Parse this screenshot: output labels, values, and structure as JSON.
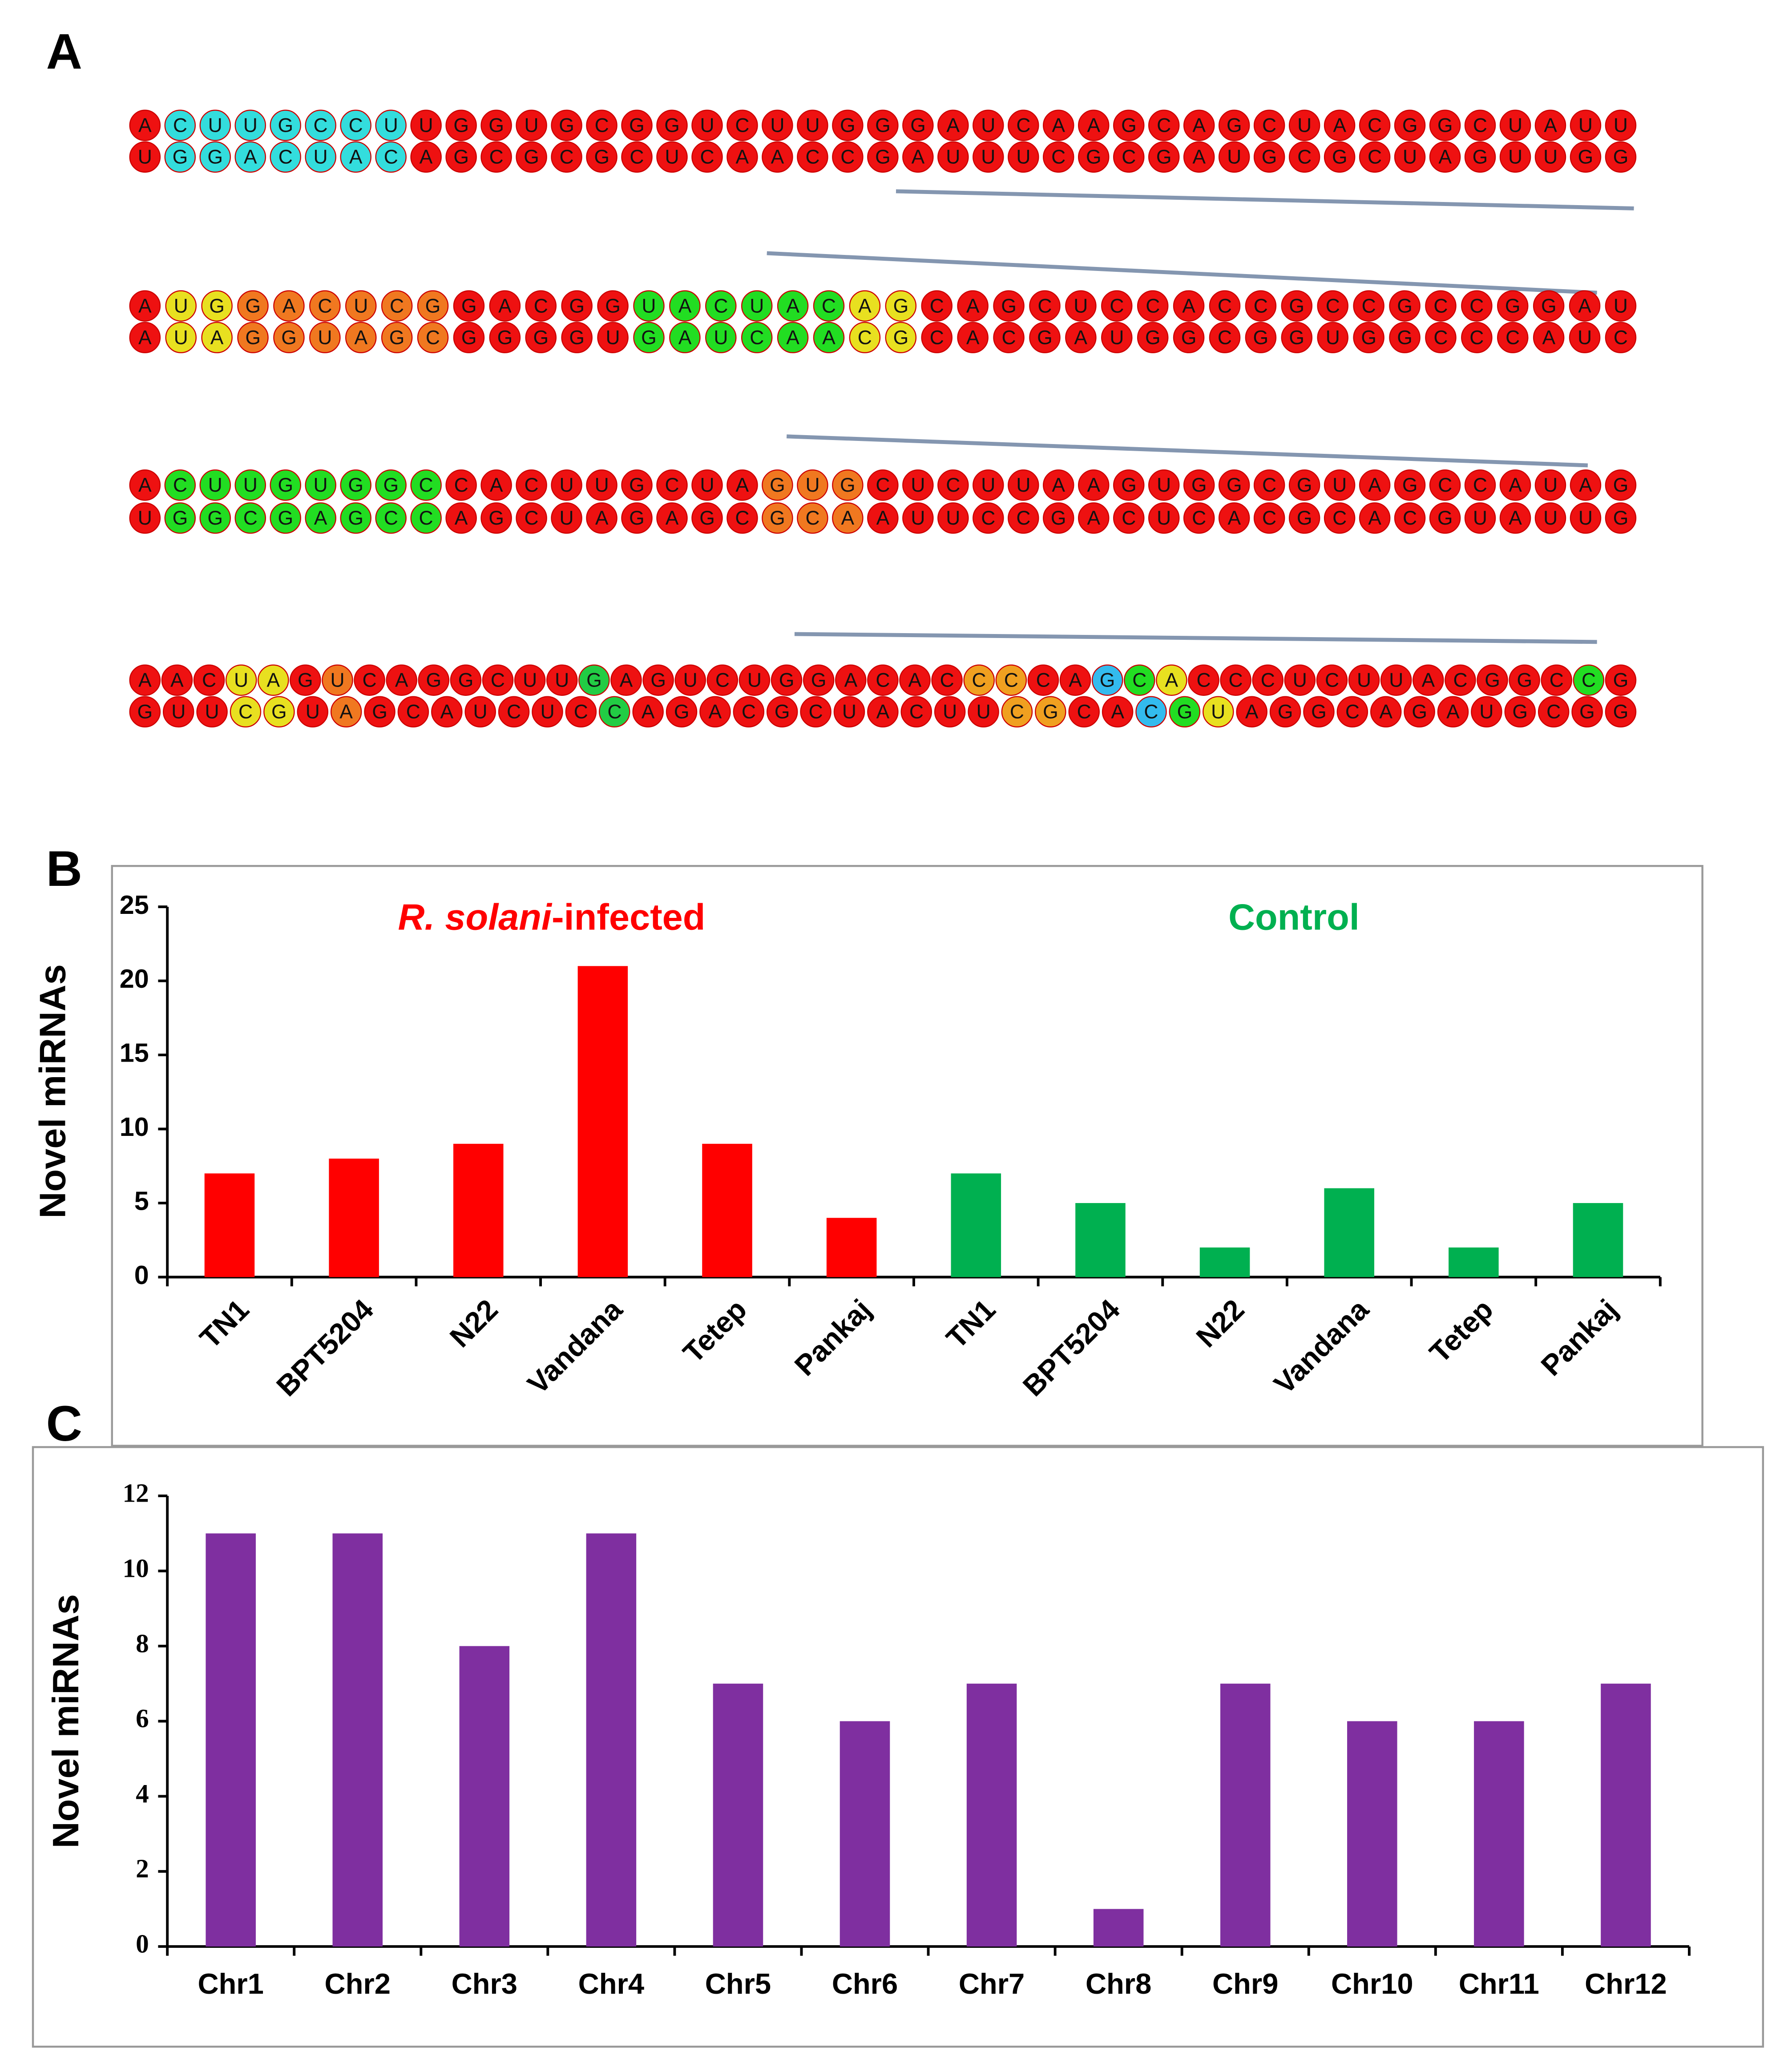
{
  "panels": [
    "A",
    "B",
    "C"
  ],
  "structures": [
    {
      "top": "ACUUGCCUUGGUGCGGUCUUGGGAUCAAGCAGCUACGGCUAUU",
      "bottom": "UGGACUACAGCGCGCUCAACCGAUUUCGCGAUGCGCUAGUUGG"
    },
    {
      "top": "AUGGACUCGGACGGUACUACAGCAGCUCCACCGCCGCCGGAU",
      "bottom": "AUAGGUAGCGGGGUGAUCAACGCACGAUGGCGGUGGCCCAUC"
    },
    {
      "top": "ACUUGUGGCCACUUGCUAGUGCUCUUAAGUGGCGUAGCCAUAG",
      "bottom": "UGGCGAGCCAGCUAGAGCGCAAUUCCGACUCACGCACGUAUUG"
    },
    {
      "top": "AACUAGUCAGGCUUGAGUCUGGACACCCCAGCACCCUCUUACGGCCG",
      "bottom": "GUUCGUAGCAUCUCCAGACGCUACUUCGCACGUAGGCAGAUGCGG"
    }
  ],
  "chart_data": [
    {
      "type": "bar",
      "y_label": "Novel miRNAs",
      "annotations": [
        "R. solani",
        "-infected",
        "Control"
      ],
      "categories": [
        "TN1",
        "BPT5204",
        "N22",
        "Vandana",
        "Tetep",
        "Pankaj",
        "TN1",
        "BPT5204",
        "N22",
        "Vandana",
        "Tetep",
        "Pankaj"
      ],
      "values": [
        7,
        8,
        9,
        21,
        9,
        4,
        7,
        5,
        2,
        6,
        2,
        5
      ],
      "colors": [
        "#ff0000",
        "#ff0000",
        "#ff0000",
        "#ff0000",
        "#ff0000",
        "#ff0000",
        "#00b050",
        "#00b050",
        "#00b050",
        "#00b050",
        "#00b050",
        "#00b050"
      ],
      "ylim": [
        0,
        25
      ],
      "yticks": [
        0,
        5,
        10,
        15,
        20,
        25
      ]
    },
    {
      "type": "bar",
      "y_label": "Novel miRNAs",
      "categories": [
        "Chr1",
        "Chr2",
        "Chr3",
        "Chr4",
        "Chr5",
        "Chr6",
        "Chr7",
        "Chr8",
        "Chr9",
        "Chr10",
        "Chr11",
        "Chr12"
      ],
      "values": [
        11,
        11,
        8,
        11,
        7,
        6,
        7,
        1,
        7,
        6,
        6,
        7
      ],
      "color": "#7f2fa0",
      "ylim": [
        0,
        12
      ],
      "yticks": [
        0,
        2,
        4,
        6,
        8,
        10,
        12
      ]
    }
  ]
}
